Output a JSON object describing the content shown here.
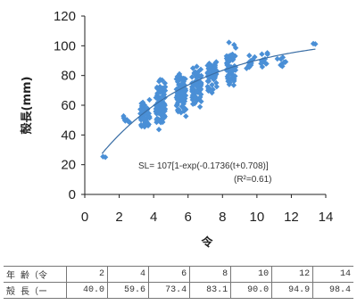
{
  "chart_data": {
    "type": "scatter",
    "xlabel": "令",
    "ylabel": "殻長(mm)",
    "xlim": [
      0,
      14
    ],
    "ylim": [
      0,
      120
    ],
    "xticks": [
      0,
      2,
      4,
      6,
      8,
      10,
      12,
      14
    ],
    "yticks": [
      0,
      20,
      40,
      60,
      80,
      100,
      120
    ],
    "grid": false,
    "marker_color": "#4a8fd6",
    "curve_color": "#3a6ea5",
    "curve_label": "SL= 107[1-exp(-0.1736(t+0.708)]",
    "r2_label": "(R²=0.61)",
    "curve": {
      "model": "von_bertalanffy",
      "Linf": 107,
      "k": 0.1736,
      "t0": -0.708
    },
    "clusters": [
      {
        "x": 1.2,
        "y_range": [
          24,
          27
        ],
        "n": 2
      },
      {
        "x": 2.5,
        "y_range": [
          47,
          53
        ],
        "n": 8
      },
      {
        "x": 3.5,
        "y_range": [
          44,
          66
        ],
        "n": 45
      },
      {
        "x": 4.4,
        "y_range": [
          42,
          80
        ],
        "n": 90
      },
      {
        "x": 5.6,
        "y_range": [
          52,
          84
        ],
        "n": 90
      },
      {
        "x": 6.5,
        "y_range": [
          58,
          88
        ],
        "n": 70
      },
      {
        "x": 7.4,
        "y_range": [
          66,
          93
        ],
        "n": 60
      },
      {
        "x": 8.5,
        "y_range": [
          72,
          104
        ],
        "n": 55
      },
      {
        "x": 9.6,
        "y_range": [
          83,
          96
        ],
        "n": 12
      },
      {
        "x": 10.5,
        "y_range": [
          82,
          98
        ],
        "n": 12
      },
      {
        "x": 11.4,
        "y_range": [
          85,
          95
        ],
        "n": 10
      },
      {
        "x": 13.4,
        "y_range": [
          100,
          103
        ],
        "n": 2
      }
    ]
  },
  "table": {
    "rows": [
      {
        "label": "年 齢（令",
        "values": [
          "2",
          "4",
          "6",
          "8",
          "10",
          "12",
          "14"
        ]
      },
      {
        "label": "殻 長（ー",
        "values": [
          "40.0",
          "59.6",
          "73.4",
          "83.1",
          "90.0",
          "94.9",
          "98.4"
        ]
      }
    ]
  }
}
